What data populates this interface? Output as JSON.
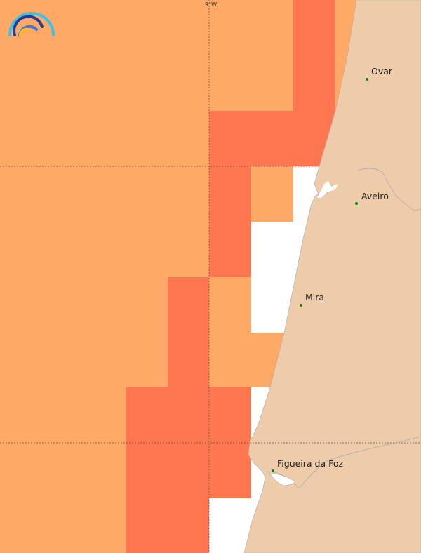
{
  "map": {
    "graticule_label": "9°W",
    "colors": {
      "low": "#FFA966",
      "high": "#FF7751",
      "land": "#EECCAA",
      "sea": "#FFFFFF",
      "city": "#118811"
    },
    "cities": [
      {
        "name": "Ovar"
      },
      {
        "name": "Aveiro"
      },
      {
        "name": "Mira"
      },
      {
        "name": "Figueira da Foz"
      }
    ],
    "grid_levels": [
      [
        "low",
        "low",
        "low",
        "low",
        "low",
        "low",
        "low",
        "high",
        "low"
      ],
      [
        "low",
        "low",
        "low",
        "low",
        "low",
        "high",
        "high",
        "high",
        null
      ],
      [
        "low",
        "low",
        "low",
        "low",
        "low",
        "high",
        "low",
        null,
        null
      ],
      [
        "low",
        "low",
        "low",
        "low",
        "low",
        "high",
        null,
        null,
        null
      ],
      [
        "low",
        "low",
        "low",
        "low",
        "high",
        "low",
        null,
        null,
        null
      ],
      [
        "low",
        "low",
        "low",
        "low",
        "high",
        "low",
        "low",
        null,
        null
      ],
      [
        "low",
        "low",
        "low",
        "high",
        "high",
        "high",
        null,
        null,
        null
      ],
      [
        "low",
        "low",
        "low",
        "high",
        "high",
        "high",
        null,
        null,
        null
      ],
      [
        "low",
        "low",
        "low",
        "high",
        "high",
        null,
        null,
        null,
        null
      ]
    ]
  }
}
